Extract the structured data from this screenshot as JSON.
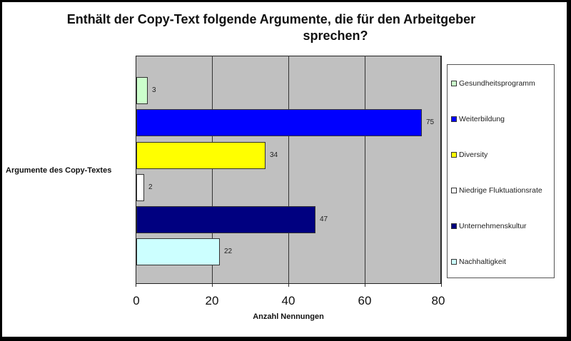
{
  "chart_data": {
    "type": "bar",
    "orientation": "horizontal",
    "title": "Enthält der Copy-Text folgende Argumente, die für den Arbeitgeber sprechen?",
    "title_lines": [
      "Enthält der Copy-Text folgende Argumente, die für den Arbeitgeber",
      "sprechen?"
    ],
    "xlabel": "Anzahl Nennungen",
    "ylabel": "Argumente des Copy-Textes",
    "xlim": [
      0,
      80
    ],
    "x_ticks": [
      "0",
      "20",
      "40",
      "60",
      "80"
    ],
    "grid": "vertical",
    "legend_position": "right",
    "series": [
      {
        "name": "Gesundheitsprogramm",
        "value": 3,
        "color": "#ccffcc",
        "label": "3"
      },
      {
        "name": "Weiterbildung",
        "value": 75,
        "color": "#0000ff",
        "label": "75"
      },
      {
        "name": "Diversity",
        "value": 34,
        "color": "#ffff00",
        "label": "34"
      },
      {
        "name": "Niedrige Fluktuationsrate",
        "value": 2,
        "color": "#ffffff",
        "label": "2"
      },
      {
        "name": "Unternehmenskultur",
        "value": 47,
        "color": "#000080",
        "label": "47"
      },
      {
        "name": "Nachhaltigkeit",
        "value": 22,
        "color": "#ccffff",
        "label": "22"
      }
    ],
    "plot_background": "#c0c0c0"
  }
}
